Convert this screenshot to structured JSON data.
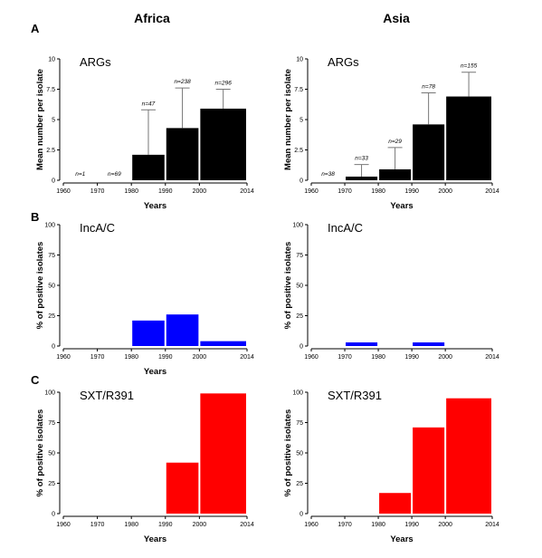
{
  "figure": {
    "column_headers": [
      "Africa",
      "Asia"
    ],
    "panel_letters": [
      "A",
      "B",
      "C"
    ]
  },
  "chart_data": [
    {
      "type": "bar",
      "region": "Africa",
      "panel": "A",
      "title": "ARGs",
      "xlabel": "Years",
      "ylabel": "Mean number per isolate",
      "xlim": [
        1960,
        2014
      ],
      "ylim": [
        0,
        10
      ],
      "xticks": [
        "1960",
        "1970",
        "1980",
        "1990",
        "2000",
        "2014"
      ],
      "yticks": [
        "0",
        "2.5",
        "5",
        "7.5",
        "10"
      ],
      "color": "#000000",
      "bars": [
        {
          "start": 1960,
          "end": 1970,
          "value": 0,
          "error": 0,
          "n_label": "n=1"
        },
        {
          "start": 1970,
          "end": 1980,
          "value": 0,
          "error": 0,
          "n_label": "n=69"
        },
        {
          "start": 1980,
          "end": 1990,
          "value": 2.1,
          "error": 3.7,
          "n_label": "n=47"
        },
        {
          "start": 1990,
          "end": 2000,
          "value": 4.3,
          "error": 3.3,
          "n_label": "n=238"
        },
        {
          "start": 2000,
          "end": 2014,
          "value": 5.9,
          "error": 1.6,
          "n_label": "n=296"
        }
      ]
    },
    {
      "type": "bar",
      "region": "Asia",
      "panel": "A",
      "title": "ARGs",
      "xlabel": "Years",
      "ylabel": "Mean number per isolate",
      "xlim": [
        1960,
        2014
      ],
      "ylim": [
        0,
        10
      ],
      "xticks": [
        "1960",
        "1970",
        "1980",
        "1990",
        "2000",
        "2014"
      ],
      "yticks": [
        "0",
        "2.5",
        "5",
        "7.5",
        "10"
      ],
      "color": "#000000",
      "bars": [
        {
          "start": 1960,
          "end": 1970,
          "value": 0,
          "error": 0,
          "n_label": "n=38"
        },
        {
          "start": 1970,
          "end": 1980,
          "value": 0.3,
          "error": 1.0,
          "n_label": "n=33"
        },
        {
          "start": 1980,
          "end": 1990,
          "value": 0.9,
          "error": 1.8,
          "n_label": "n=29"
        },
        {
          "start": 1990,
          "end": 2000,
          "value": 4.6,
          "error": 2.6,
          "n_label": "n=78"
        },
        {
          "start": 2000,
          "end": 2014,
          "value": 6.9,
          "error": 2.0,
          "n_label": "n=155"
        }
      ]
    },
    {
      "type": "bar",
      "region": "Africa",
      "panel": "B",
      "title": "IncA/C",
      "xlabel": "Years",
      "ylabel": "% of positive isolates",
      "xlim": [
        1960,
        2014
      ],
      "ylim": [
        0,
        100
      ],
      "xticks": [
        "1960",
        "1970",
        "1980",
        "1990",
        "2000",
        "2014"
      ],
      "yticks": [
        "0",
        "25",
        "50",
        "75",
        "100"
      ],
      "color": "#0000ff",
      "bars": [
        {
          "start": 1980,
          "end": 1990,
          "value": 21
        },
        {
          "start": 1990,
          "end": 2000,
          "value": 26
        },
        {
          "start": 2000,
          "end": 2014,
          "value": 4
        }
      ]
    },
    {
      "type": "bar",
      "region": "Asia",
      "panel": "B",
      "title": "IncA/C",
      "xlabel": "",
      "ylabel": "% of positive isolates",
      "xlim": [
        1960,
        2014
      ],
      "ylim": [
        0,
        100
      ],
      "xticks": [
        "1960",
        "1970",
        "1980",
        "1990",
        "2000",
        "2014"
      ],
      "yticks": [
        "0",
        "25",
        "50",
        "75",
        "100"
      ],
      "color": "#0000ff",
      "bars": [
        {
          "start": 1970,
          "end": 1980,
          "value": 3
        },
        {
          "start": 1990,
          "end": 2000,
          "value": 3
        }
      ]
    },
    {
      "type": "bar",
      "region": "Africa",
      "panel": "C",
      "title": "SXT/R391",
      "xlabel": "Years",
      "ylabel": "% of positive isolates",
      "xlim": [
        1960,
        2014
      ],
      "ylim": [
        0,
        100
      ],
      "xticks": [
        "1960",
        "1970",
        "1980",
        "1990",
        "2000",
        "2014"
      ],
      "yticks": [
        "0",
        "25",
        "50",
        "75",
        "100"
      ],
      "color": "#ff0000",
      "bars": [
        {
          "start": 1990,
          "end": 2000,
          "value": 42
        },
        {
          "start": 2000,
          "end": 2014,
          "value": 99
        }
      ]
    },
    {
      "type": "bar",
      "region": "Asia",
      "panel": "C",
      "title": "SXT/R391",
      "xlabel": "Years",
      "ylabel": "% of positive isolates",
      "xlim": [
        1960,
        2014
      ],
      "ylim": [
        0,
        100
      ],
      "xticks": [
        "1960",
        "1970",
        "1980",
        "1990",
        "2000",
        "2014"
      ],
      "yticks": [
        "0",
        "25",
        "50",
        "75",
        "100"
      ],
      "color": "#ff0000",
      "bars": [
        {
          "start": 1980,
          "end": 1990,
          "value": 17
        },
        {
          "start": 1990,
          "end": 2000,
          "value": 71
        },
        {
          "start": 2000,
          "end": 2014,
          "value": 95
        }
      ]
    }
  ]
}
